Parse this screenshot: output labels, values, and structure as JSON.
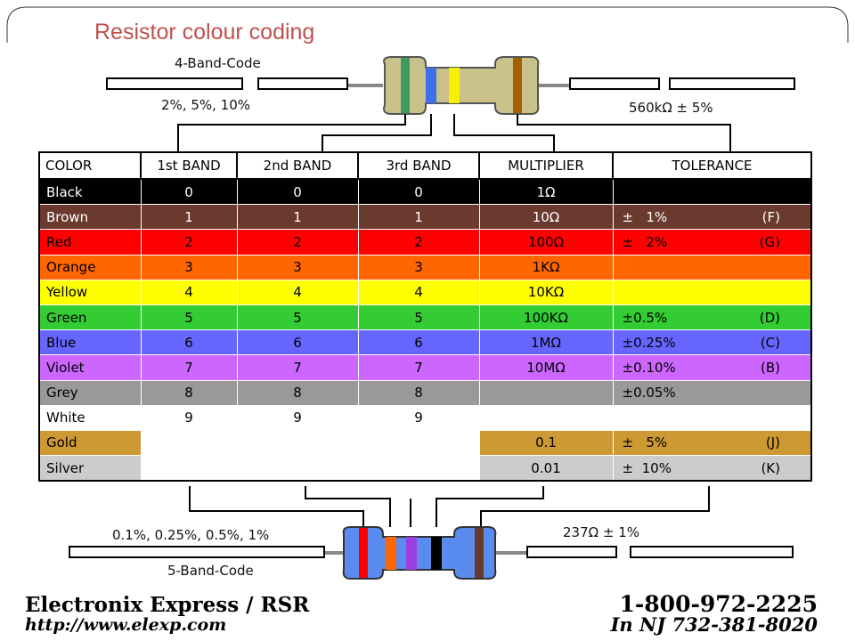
{
  "title": "Resistor colour coding",
  "top_resistor": {
    "code_label": "4-Band-Code",
    "tolerance_options": "2%, 5%, 10%",
    "example_value": "560kΩ ± 5%",
    "band_colors": [
      "#3e9a5f",
      "#3f6fe8",
      "#f5f100",
      "#a45f00"
    ],
    "body_color": "#c9c08a"
  },
  "bottom_resistor": {
    "code_label": "5-Band-Code",
    "tolerance_options": "0.1%, 0.25%, 0.5%, 1%",
    "example_value": "237Ω ± 1%",
    "band_colors": [
      "#ff0000",
      "#ff6600",
      "#9b3fe0",
      "#000000",
      "#6b3a2a"
    ],
    "body_color": "#5a8cf0"
  },
  "table": {
    "headers": [
      "COLOR",
      "1st BAND",
      "2nd BAND",
      "3rd BAND",
      "MULTIPLIER",
      "TOLERANCE"
    ],
    "rows": [
      {
        "color": "Black",
        "bg": "#000000",
        "fg": "#ffffff",
        "band1": "0",
        "band2": "0",
        "band3": "0",
        "multiplier": "1Ω",
        "tol": "",
        "tol_code": ""
      },
      {
        "color": "Brown",
        "bg": "#6b3a2f",
        "fg": "#ffffff",
        "band1": "1",
        "band2": "1",
        "band3": "1",
        "multiplier": "10Ω",
        "tol": "±   1%",
        "tol_code": "(F)"
      },
      {
        "color": "Red",
        "bg": "#ff0000",
        "fg": "#000000",
        "band1": "2",
        "band2": "2",
        "band3": "2",
        "multiplier": "100Ω",
        "tol": "±   2%",
        "tol_code": "(G)"
      },
      {
        "color": "Orange",
        "bg": "#ff6600",
        "fg": "#000000",
        "band1": "3",
        "band2": "3",
        "band3": "3",
        "multiplier": "1KΩ",
        "tol": "",
        "tol_code": ""
      },
      {
        "color": "Yellow",
        "bg": "#ffff00",
        "fg": "#000000",
        "band1": "4",
        "band2": "4",
        "band3": "4",
        "multiplier": "10KΩ",
        "tol": "",
        "tol_code": ""
      },
      {
        "color": "Green",
        "bg": "#33cc33",
        "fg": "#000000",
        "band1": "5",
        "band2": "5",
        "band3": "5",
        "multiplier": "100KΩ",
        "tol": "±0.5%",
        "tol_code": "(D)"
      },
      {
        "color": "Blue",
        "bg": "#6666ff",
        "fg": "#000000",
        "band1": "6",
        "band2": "6",
        "band3": "6",
        "multiplier": "1MΩ",
        "tol": "±0.25%",
        "tol_code": "(C)"
      },
      {
        "color": "Violet",
        "bg": "#cc66ff",
        "fg": "#000000",
        "band1": "7",
        "band2": "7",
        "band3": "7",
        "multiplier": "10MΩ",
        "tol": "±0.10%",
        "tol_code": "(B)"
      },
      {
        "color": "Grey",
        "bg": "#999999",
        "fg": "#000000",
        "band1": "8",
        "band2": "8",
        "band3": "8",
        "multiplier": "",
        "tol": "±0.05%",
        "tol_code": ""
      },
      {
        "color": "White",
        "bg": "#ffffff",
        "fg": "#000000",
        "band1": "9",
        "band2": "9",
        "band3": "9",
        "multiplier": "",
        "tol": "",
        "tol_code": ""
      },
      {
        "color": "Gold",
        "bg": "#cc9933",
        "fg": "#000000",
        "band1": "",
        "band2": "",
        "band3": "",
        "multiplier": "0.1",
        "tol": "±   5%",
        "tol_code": "(J)"
      },
      {
        "color": "Silver",
        "bg": "#cccccc",
        "fg": "#000000",
        "band1": "",
        "band2": "",
        "band3": "",
        "multiplier": "0.01",
        "tol": "±  10%",
        "tol_code": "(K)"
      }
    ]
  },
  "footer": {
    "company": "Electronix Express / RSR",
    "url": "http://www.elexp.com",
    "phone": "1-800-972-2225",
    "phone_nj": "In  NJ  732-381-8020"
  },
  "accent_color": "#c0504d"
}
